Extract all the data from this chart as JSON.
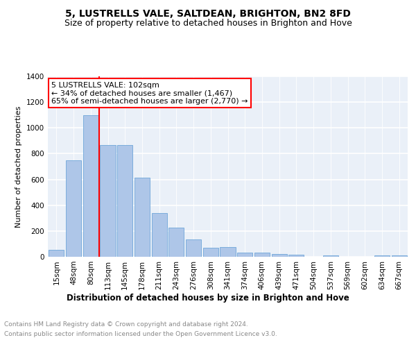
{
  "title": "5, LUSTRELLS VALE, SALTDEAN, BRIGHTON, BN2 8FD",
  "subtitle": "Size of property relative to detached houses in Brighton and Hove",
  "xlabel": "Distribution of detached houses by size in Brighton and Hove",
  "ylabel": "Number of detached properties",
  "footnote1": "Contains HM Land Registry data © Crown copyright and database right 2024.",
  "footnote2": "Contains public sector information licensed under the Open Government Licence v3.0.",
  "bar_labels": [
    "15sqm",
    "48sqm",
    "80sqm",
    "113sqm",
    "145sqm",
    "178sqm",
    "211sqm",
    "243sqm",
    "276sqm",
    "308sqm",
    "341sqm",
    "374sqm",
    "406sqm",
    "439sqm",
    "471sqm",
    "504sqm",
    "537sqm",
    "569sqm",
    "602sqm",
    "634sqm",
    "667sqm"
  ],
  "bar_values": [
    52,
    748,
    1100,
    865,
    865,
    613,
    340,
    227,
    135,
    68,
    73,
    32,
    35,
    22,
    15,
    0,
    12,
    0,
    0,
    12,
    12
  ],
  "bar_color": "#aec6e8",
  "bar_edge_color": "#5b9bd5",
  "annotation_text": "5 LUSTRELLS VALE: 102sqm\n← 34% of detached houses are smaller (1,467)\n65% of semi-detached houses are larger (2,770) →",
  "annotation_box_color": "white",
  "annotation_box_edge_color": "red",
  "vline_color": "red",
  "ylim": [
    0,
    1400
  ],
  "plot_background": "#eaf0f8",
  "grid_color": "white",
  "title_fontsize": 10,
  "subtitle_fontsize": 9,
  "xlabel_fontsize": 8.5,
  "ylabel_fontsize": 8,
  "tick_fontsize": 7.5,
  "annotation_fontsize": 8,
  "footnote_fontsize": 6.5
}
